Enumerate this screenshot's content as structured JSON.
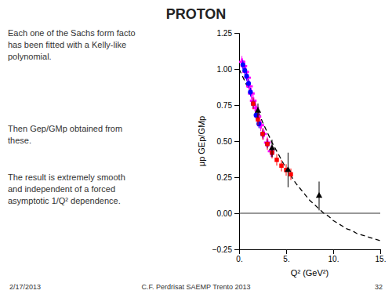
{
  "chart_data": {
    "type": "scatter",
    "title": "PROTON",
    "x_label": "Q² (GeV²)",
    "y_label": "μp GEp/GMp",
    "annotations": [
      "Each one of the Sachs form facto\nhas been fitted with a Kelly-like\npolynomial.",
      "Then Gep/GMp obtained from\nthese.",
      "The result is extremely smooth\nand independent of a forced\nasymptotic 1/Q² dependence."
    ],
    "footers": [
      "2/17/2013",
      "C.F. Perdrisat SAEMP Trento 2013",
      "32"
    ],
    "xlim": [
      0,
      15
    ],
    "ylim": [
      -0.25,
      1.25
    ],
    "xticks": [
      {
        "value": 0,
        "label": "0."
      },
      {
        "value": 5,
        "label": "5."
      },
      {
        "value": 10,
        "label": "10."
      },
      {
        "value": 15,
        "label": "15."
      }
    ],
    "yticks": [
      {
        "value": -0.25,
        "label": "−0.25"
      },
      {
        "value": 0.0,
        "label": "0.00"
      },
      0.25,
      {
        "value": 0.5,
        "label": "0.50"
      },
      0.75,
      {
        "value": 1.0,
        "label": "1.00"
      },
      1.25
    ],
    "grid": false,
    "hlines": [
      0
    ],
    "series": [
      {
        "type": "scatter",
        "color": "magenta",
        "marker": "plus",
        "x": [
          0.3,
          0.5,
          0.7,
          0.9,
          1.1,
          1.3,
          1.5,
          1.75,
          2.0,
          2.3,
          2.6,
          3.0,
          3.4
        ],
        "values": [
          1.05,
          1.02,
          0.98,
          0.94,
          0.88,
          0.83,
          0.78,
          0.73,
          0.67,
          0.61,
          0.55,
          0.49,
          0.43
        ],
        "errors": [
          0.04,
          0.04,
          0.04,
          0.04,
          0.04,
          0.04,
          0.04,
          0.04,
          0.04,
          0.04,
          0.04,
          0.04,
          0.04
        ]
      },
      {
        "type": "scatter",
        "color": "blue",
        "marker": "circle",
        "x": [
          0.4,
          0.6,
          0.8,
          1.0,
          1.2,
          1.5,
          1.8,
          2.1,
          2.5,
          3.0,
          3.5
        ],
        "values": [
          1.03,
          0.99,
          0.95,
          0.9,
          0.84,
          0.76,
          0.68,
          0.62,
          0.55,
          0.48,
          0.42
        ],
        "errors": [
          0.03,
          0.03,
          0.03,
          0.03,
          0.03,
          0.03,
          0.03,
          0.03,
          0.03,
          0.03,
          0.03
        ]
      },
      {
        "type": "scatter",
        "color": "red",
        "marker": "square",
        "x": [
          1.5,
          2.0,
          2.5,
          3.0,
          3.5,
          4.0,
          4.5,
          5.0,
          5.5
        ],
        "values": [
          0.76,
          0.65,
          0.55,
          0.48,
          0.42,
          0.37,
          0.33,
          0.3,
          0.27
        ],
        "errors": [
          0.04,
          0.04,
          0.04,
          0.04,
          0.04,
          0.04,
          0.04,
          0.04,
          0.04
        ]
      },
      {
        "type": "scatter",
        "color": "black",
        "marker": "triangle",
        "x": [
          2.0,
          3.5,
          5.2,
          8.5
        ],
        "values": [
          0.71,
          0.45,
          0.3,
          0.12
        ],
        "errors": [
          0.05,
          0.06,
          0.12,
          0.1
        ]
      },
      {
        "type": "line",
        "color": "black",
        "line_style": "dashed",
        "x": [
          0.0,
          0.5,
          1.0,
          1.5,
          2.0,
          2.5,
          3.0,
          3.5,
          4.0,
          4.5,
          5.0,
          5.5,
          6.0,
          6.5,
          7.0,
          7.5,
          8.0,
          8.5,
          9.0,
          9.5,
          10.0,
          10.5,
          11.0,
          11.5,
          12.0,
          12.5,
          13.0,
          13.5,
          14.0,
          14.5,
          15.0
        ],
        "values": [
          1.0,
          0.93,
          0.86,
          0.79,
          0.71,
          0.63,
          0.56,
          0.49,
          0.43,
          0.37,
          0.31,
          0.26,
          0.21,
          0.17,
          0.13,
          0.09,
          0.06,
          0.03,
          0.0,
          -0.02,
          -0.05,
          -0.07,
          -0.09,
          -0.11,
          -0.12,
          -0.14,
          -0.15,
          -0.16,
          -0.17,
          -0.18,
          -0.19
        ]
      }
    ]
  }
}
